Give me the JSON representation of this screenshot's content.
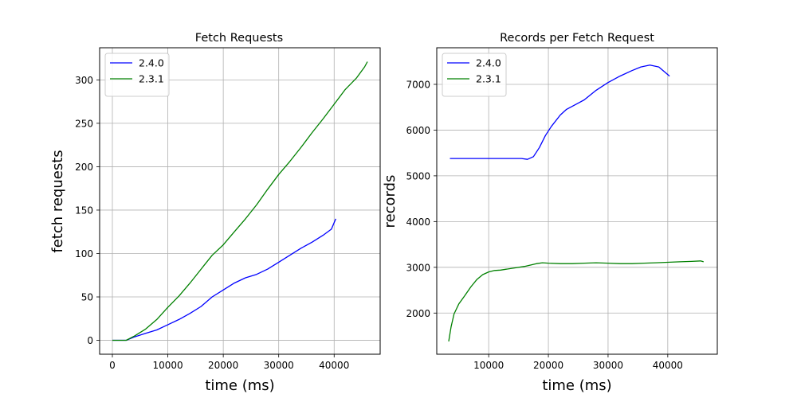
{
  "chart_data": [
    {
      "type": "line",
      "title": "Fetch Requests",
      "xlabel": "time (ms)",
      "ylabel": "fetch requests",
      "xlim": [
        -2300,
        48300
      ],
      "ylim": [
        -16,
        337
      ],
      "xticks": [
        0,
        10000,
        20000,
        30000,
        40000
      ],
      "yticks": [
        0,
        50,
        100,
        150,
        200,
        250,
        300
      ],
      "grid": true,
      "legend_position": "top-left",
      "series": [
        {
          "name": "2.4.0",
          "color": "#0000ff",
          "x": [
            0,
            2500,
            4000,
            6000,
            8000,
            10000,
            12000,
            14000,
            16000,
            18000,
            20000,
            22000,
            24000,
            26000,
            28000,
            30000,
            32000,
            34000,
            36000,
            38000,
            39500,
            40300
          ],
          "y": [
            0,
            0,
            4,
            8,
            12,
            18,
            24,
            31,
            39,
            50,
            58,
            66,
            72,
            76,
            82,
            90,
            98,
            106,
            113,
            121,
            128,
            140
          ]
        },
        {
          "name": "2.3.1",
          "color": "#008000",
          "x": [
            0,
            2500,
            4000,
            6000,
            8000,
            10000,
            12000,
            14000,
            16000,
            18000,
            20000,
            22000,
            24000,
            26000,
            28000,
            30000,
            32000,
            34000,
            36000,
            38000,
            40000,
            42000,
            44000,
            45500,
            46000
          ],
          "y": [
            0,
            0,
            5,
            13,
            24,
            38,
            51,
            66,
            82,
            98,
            110,
            125,
            140,
            156,
            174,
            191,
            206,
            222,
            239,
            255,
            272,
            289,
            302,
            315,
            321
          ]
        }
      ]
    },
    {
      "type": "line",
      "title": "Records per Fetch Request",
      "xlabel": "time (ms)",
      "ylabel": "records",
      "xlim": [
        1300,
        48300
      ],
      "ylim": [
        1100,
        7800
      ],
      "xticks": [
        10000,
        20000,
        30000,
        40000
      ],
      "yticks": [
        2000,
        3000,
        4000,
        5000,
        6000,
        7000
      ],
      "grid": true,
      "legend_position": "top-left",
      "series": [
        {
          "name": "2.4.0",
          "color": "#0000ff",
          "x": [
            3500,
            6000,
            10000,
            14000,
            15500,
            16500,
            17500,
            18500,
            19500,
            20500,
            22000,
            23000,
            24000,
            26000,
            28000,
            30000,
            32000,
            34000,
            35500,
            37000,
            38500,
            40300
          ],
          "y": [
            5380,
            5380,
            5380,
            5380,
            5380,
            5360,
            5420,
            5620,
            5880,
            6080,
            6330,
            6450,
            6520,
            6660,
            6870,
            7040,
            7180,
            7300,
            7380,
            7420,
            7380,
            7180
          ]
        },
        {
          "name": "2.3.1",
          "color": "#008000",
          "x": [
            3300,
            3700,
            4200,
            5000,
            6000,
            7000,
            8000,
            9000,
            10000,
            11000,
            12000,
            14000,
            16000,
            18000,
            19000,
            20000,
            22000,
            24000,
            26000,
            28000,
            30000,
            32000,
            34000,
            36000,
            38000,
            40000,
            42000,
            44000,
            45500,
            46000
          ],
          "y": [
            1380,
            1700,
            1980,
            2200,
            2380,
            2570,
            2730,
            2840,
            2900,
            2930,
            2940,
            2980,
            3020,
            3080,
            3100,
            3090,
            3080,
            3080,
            3090,
            3100,
            3090,
            3080,
            3080,
            3090,
            3100,
            3110,
            3120,
            3130,
            3140,
            3120
          ]
        }
      ]
    }
  ]
}
